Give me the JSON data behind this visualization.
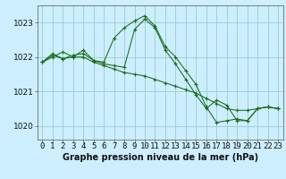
{
  "title": "Graphe pression niveau de la mer (hPa)",
  "background_color": "#cceeff",
  "grid_color": "#99cccc",
  "line_color": "#1a6b1a",
  "x_ticks": [
    0,
    1,
    2,
    3,
    4,
    5,
    6,
    7,
    8,
    9,
    10,
    11,
    12,
    13,
    14,
    15,
    16,
    17,
    18,
    19,
    20,
    21,
    22,
    23
  ],
  "ylim": [
    1019.6,
    1023.5
  ],
  "y_ticks": [
    1020,
    1021,
    1022,
    1023
  ],
  "series": [
    [
      1021.85,
      1022.0,
      1022.15,
      1022.0,
      1022.2,
      1021.9,
      1021.85,
      1022.55,
      1022.85,
      1023.05,
      1023.2,
      1022.9,
      1022.3,
      1022.0,
      1021.6,
      1021.2,
      1020.55,
      1020.1,
      1020.15,
      1020.2,
      1020.15,
      1020.5,
      1020.55,
      1020.5
    ],
    [
      1021.85,
      1022.1,
      1021.95,
      1022.05,
      1022.1,
      1021.9,
      1021.8,
      1021.75,
      1021.7,
      1022.8,
      1023.1,
      1022.85,
      1022.2,
      1021.8,
      1021.35,
      1020.9,
      1020.5,
      1020.75,
      1020.6,
      1020.15,
      1020.15,
      1020.5,
      1020.55,
      1020.5
    ],
    [
      1021.85,
      1022.05,
      1021.95,
      1022.0,
      1022.0,
      1021.85,
      1021.75,
      1021.65,
      1021.55,
      1021.5,
      1021.45,
      1021.35,
      1021.25,
      1021.15,
      1021.05,
      1020.95,
      1020.8,
      1020.65,
      1020.5,
      1020.45,
      1020.45,
      1020.5,
      1020.55,
      1020.5
    ]
  ],
  "xlabel_fontsize": 6.5,
  "ylabel_fontsize": 6.5,
  "title_fontsize": 7,
  "marker": "+"
}
